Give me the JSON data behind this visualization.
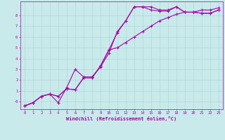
{
  "background_color": "#c8eaea",
  "grid_color": "#b0d8d8",
  "line_color": "#aa00aa",
  "xlabel": "Windchill (Refroidissement éolien,°C)",
  "xlabel_color": "#aa00aa",
  "tick_color": "#aa00aa",
  "xlim": [
    -0.5,
    23.5
  ],
  "ylim": [
    -0.7,
    9.3
  ],
  "yticks": [
    0,
    1,
    2,
    3,
    4,
    5,
    6,
    7,
    8
  ],
  "ytick_labels": [
    "-0",
    "1",
    "2",
    "3",
    "4",
    "5",
    "6",
    "7",
    "8"
  ],
  "xticks": [
    0,
    1,
    2,
    3,
    4,
    5,
    6,
    7,
    8,
    9,
    10,
    11,
    12,
    13,
    14,
    15,
    16,
    17,
    18,
    19,
    20,
    21,
    22,
    23
  ],
  "line1": {
    "x": [
      0,
      1,
      2,
      3,
      4,
      5,
      6,
      7,
      8,
      9,
      10,
      11,
      12,
      13,
      14,
      15,
      16,
      17,
      18,
      19,
      20,
      21,
      22,
      23
    ],
    "y": [
      -0.4,
      -0.1,
      0.5,
      0.7,
      0.5,
      1.2,
      1.1,
      2.2,
      2.2,
      3.3,
      4.8,
      6.4,
      7.5,
      8.8,
      8.8,
      8.8,
      8.5,
      8.5,
      8.8,
      8.3,
      8.3,
      8.2,
      8.2,
      8.5
    ]
  },
  "line2": {
    "x": [
      0,
      1,
      2,
      3,
      4,
      5,
      6,
      7,
      8,
      9,
      10,
      11,
      12,
      13,
      14,
      15,
      16,
      17,
      18,
      19,
      20,
      21,
      22,
      23
    ],
    "y": [
      -0.4,
      -0.1,
      0.5,
      0.7,
      -0.1,
      1.3,
      3.0,
      2.3,
      2.3,
      3.2,
      4.5,
      6.5,
      7.5,
      8.8,
      8.8,
      8.5,
      8.4,
      8.4,
      8.8,
      8.3,
      8.3,
      8.2,
      8.2,
      8.5
    ]
  },
  "line3": {
    "x": [
      0,
      1,
      2,
      3,
      4,
      5,
      6,
      7,
      8,
      9,
      10,
      11,
      12,
      13,
      14,
      15,
      16,
      17,
      18,
      19,
      20,
      21,
      22,
      23
    ],
    "y": [
      -0.4,
      -0.1,
      0.5,
      0.7,
      0.5,
      1.2,
      1.1,
      2.2,
      2.2,
      3.3,
      4.8,
      5.0,
      5.5,
      6.0,
      6.5,
      7.0,
      7.5,
      7.8,
      8.1,
      8.3,
      8.3,
      8.5,
      8.5,
      8.7
    ]
  }
}
